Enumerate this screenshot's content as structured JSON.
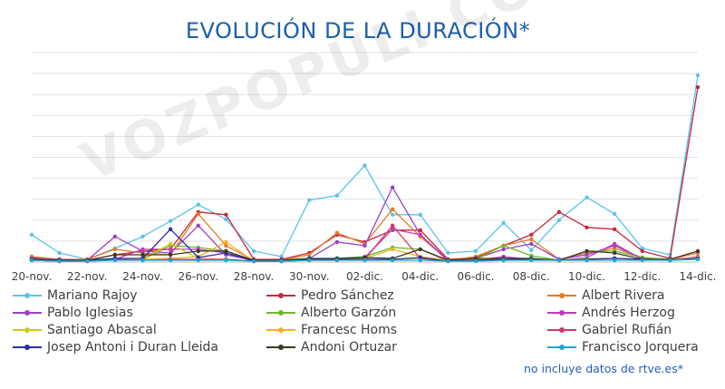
{
  "chart_data": {
    "type": "line",
    "title": "EVOLUCIÓN DE LA DURACIÓN*",
    "title_color": "#1d5fa8",
    "xlabel": "",
    "ylabel": "",
    "ylim": [
      0,
      230
    ],
    "grid": "horizontal",
    "legend": "bottom",
    "tick_labels": [
      "20-nov.",
      "22-nov.",
      "24-nov.",
      "26-nov.",
      "28-nov.",
      "30-nov.",
      "02-dic.",
      "04-dic.",
      "06-dic.",
      "08-dic.",
      "10-dic.",
      "12-dic.",
      "14-dic."
    ],
    "x": [
      "20-nov.",
      "21-nov.",
      "22-nov.",
      "23-nov.",
      "24-nov.",
      "25-nov.",
      "26-nov.",
      "27-nov.",
      "28-nov.",
      "29-nov.",
      "30-nov.",
      "01-dic.",
      "02-dic.",
      "03-dic.",
      "04-dic.",
      "05-dic.",
      "06-dic.",
      "07-dic.",
      "08-dic.",
      "09-dic.",
      "10-dic.",
      "11-dic.",
      "12-dic.",
      "13-dic.",
      "14-dic."
    ],
    "series": [
      {
        "name": "Mariano Rajoy",
        "color": "#5bc3ea",
        "values": [
          30,
          10,
          3,
          15,
          28,
          45,
          63,
          47,
          12,
          6,
          68,
          73,
          106,
          52,
          52,
          10,
          12,
          43,
          13,
          46,
          71,
          53,
          15,
          8,
          205
        ]
      },
      {
        "name": "Pedro Sánchez",
        "color": "#c8283c",
        "values": [
          5,
          2,
          2,
          8,
          12,
          14,
          55,
          52,
          3,
          3,
          10,
          30,
          22,
          35,
          35,
          3,
          5,
          18,
          30,
          55,
          38,
          36,
          12,
          4,
          192
        ]
      },
      {
        "name": "Albert Rivera",
        "color": "#e87a22",
        "values": [
          6,
          3,
          3,
          14,
          10,
          8,
          53,
          18,
          2,
          2,
          8,
          32,
          20,
          58,
          28,
          2,
          6,
          18,
          25,
          3,
          10,
          15,
          5,
          3,
          10
        ]
      },
      {
        "name": "Pablo Iglesias",
        "color": "#9b3fc8",
        "values": [
          4,
          3,
          2,
          28,
          12,
          10,
          40,
          8,
          2,
          2,
          4,
          22,
          18,
          82,
          30,
          2,
          4,
          14,
          20,
          3,
          8,
          18,
          4,
          3,
          4
        ]
      },
      {
        "name": "Alberto Garzón",
        "color": "#6ab82c",
        "values": [
          2,
          1,
          1,
          4,
          3,
          18,
          16,
          12,
          1,
          1,
          3,
          4,
          6,
          16,
          14,
          1,
          3,
          18,
          7,
          2,
          12,
          12,
          5,
          3,
          5
        ]
      },
      {
        "name": "Andrés Herzog",
        "color": "#c03cb4",
        "values": [
          2,
          1,
          1,
          3,
          14,
          14,
          14,
          10,
          1,
          1,
          2,
          2,
          5,
          36,
          30,
          1,
          2,
          6,
          3,
          2,
          5,
          20,
          3,
          2,
          6
        ]
      },
      {
        "name": "Santiago Abascal",
        "color": "#cccc1c",
        "values": [
          2,
          1,
          1,
          3,
          4,
          20,
          4,
          3,
          1,
          1,
          2,
          3,
          3,
          3,
          4,
          1,
          2,
          3,
          3,
          2,
          4,
          4,
          3,
          2,
          4
        ]
      },
      {
        "name": "Francesc Homs",
        "color": "#f5b21e",
        "values": [
          3,
          2,
          2,
          4,
          3,
          4,
          6,
          22,
          1,
          1,
          3,
          3,
          4,
          14,
          6,
          2,
          3,
          4,
          4,
          2,
          3,
          4,
          3,
          2,
          5
        ]
      },
      {
        "name": "Gabriel Rufián",
        "color": "#d8336a",
        "values": [
          2,
          1,
          1,
          3,
          2,
          3,
          3,
          3,
          1,
          1,
          2,
          3,
          3,
          40,
          4,
          1,
          2,
          3,
          3,
          2,
          3,
          4,
          3,
          2,
          4
        ]
      },
      {
        "name": "Josep Antoni i Duran Lleida",
        "color": "#2d2fa0",
        "values": [
          3,
          2,
          2,
          4,
          4,
          36,
          5,
          10,
          1,
          1,
          3,
          3,
          3,
          3,
          5,
          1,
          2,
          3,
          3,
          2,
          3,
          4,
          3,
          2,
          4
        ]
      },
      {
        "name": "Andoni Ortuzar",
        "color": "#3b3b24",
        "values": [
          3,
          2,
          2,
          8,
          8,
          8,
          12,
          12,
          2,
          2,
          4,
          4,
          5,
          4,
          14,
          2,
          4,
          4,
          4,
          2,
          12,
          10,
          3,
          3,
          12
        ]
      },
      {
        "name": "Francisco Jorquera",
        "color": "#1aa6d8",
        "values": [
          2,
          1,
          1,
          2,
          2,
          2,
          2,
          2,
          1,
          1,
          2,
          2,
          2,
          2,
          2,
          1,
          1,
          2,
          2,
          2,
          2,
          2,
          2,
          2,
          3
        ]
      }
    ],
    "footnote": "no incluye datos de rtve.es*"
  },
  "watermark": "VOZPOPULI CONFIDENCIAL"
}
